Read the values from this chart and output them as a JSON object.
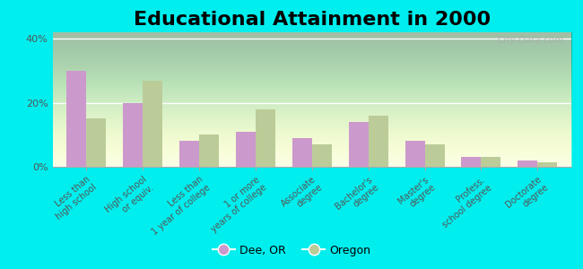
{
  "title": "Educational Attainment in 2000",
  "categories": [
    "Less than\nhigh school",
    "High school\nor equiv.",
    "Less than\n1 year of college",
    "1 or more\nyears of college",
    "Associate\ndegree",
    "Bachelor's\ndegree",
    "Master's\ndegree",
    "Profess.\nschool degree",
    "Doctorate\ndegree"
  ],
  "dee_or": [
    30,
    20,
    8,
    11,
    9,
    14,
    8,
    3,
    2
  ],
  "oregon": [
    15,
    27,
    10,
    18,
    7,
    16,
    7,
    3,
    1.5
  ],
  "dee_color": "#cc99cc",
  "oregon_color": "#bbcc99",
  "ylim": [
    0,
    42
  ],
  "yticks": [
    0,
    20,
    40
  ],
  "ytick_labels": [
    "0%",
    "20%",
    "40%"
  ],
  "bar_width": 0.35,
  "legend_labels": [
    "Dee, OR",
    "Oregon"
  ],
  "watermark": "City-Data.com",
  "outer_bg": "#00eeee",
  "plot_bg_top": "#e8f5e0",
  "plot_bg_bottom": "#f8ffe8",
  "title_fontsize": 16,
  "tick_fontsize": 7,
  "legend_fontsize": 9
}
